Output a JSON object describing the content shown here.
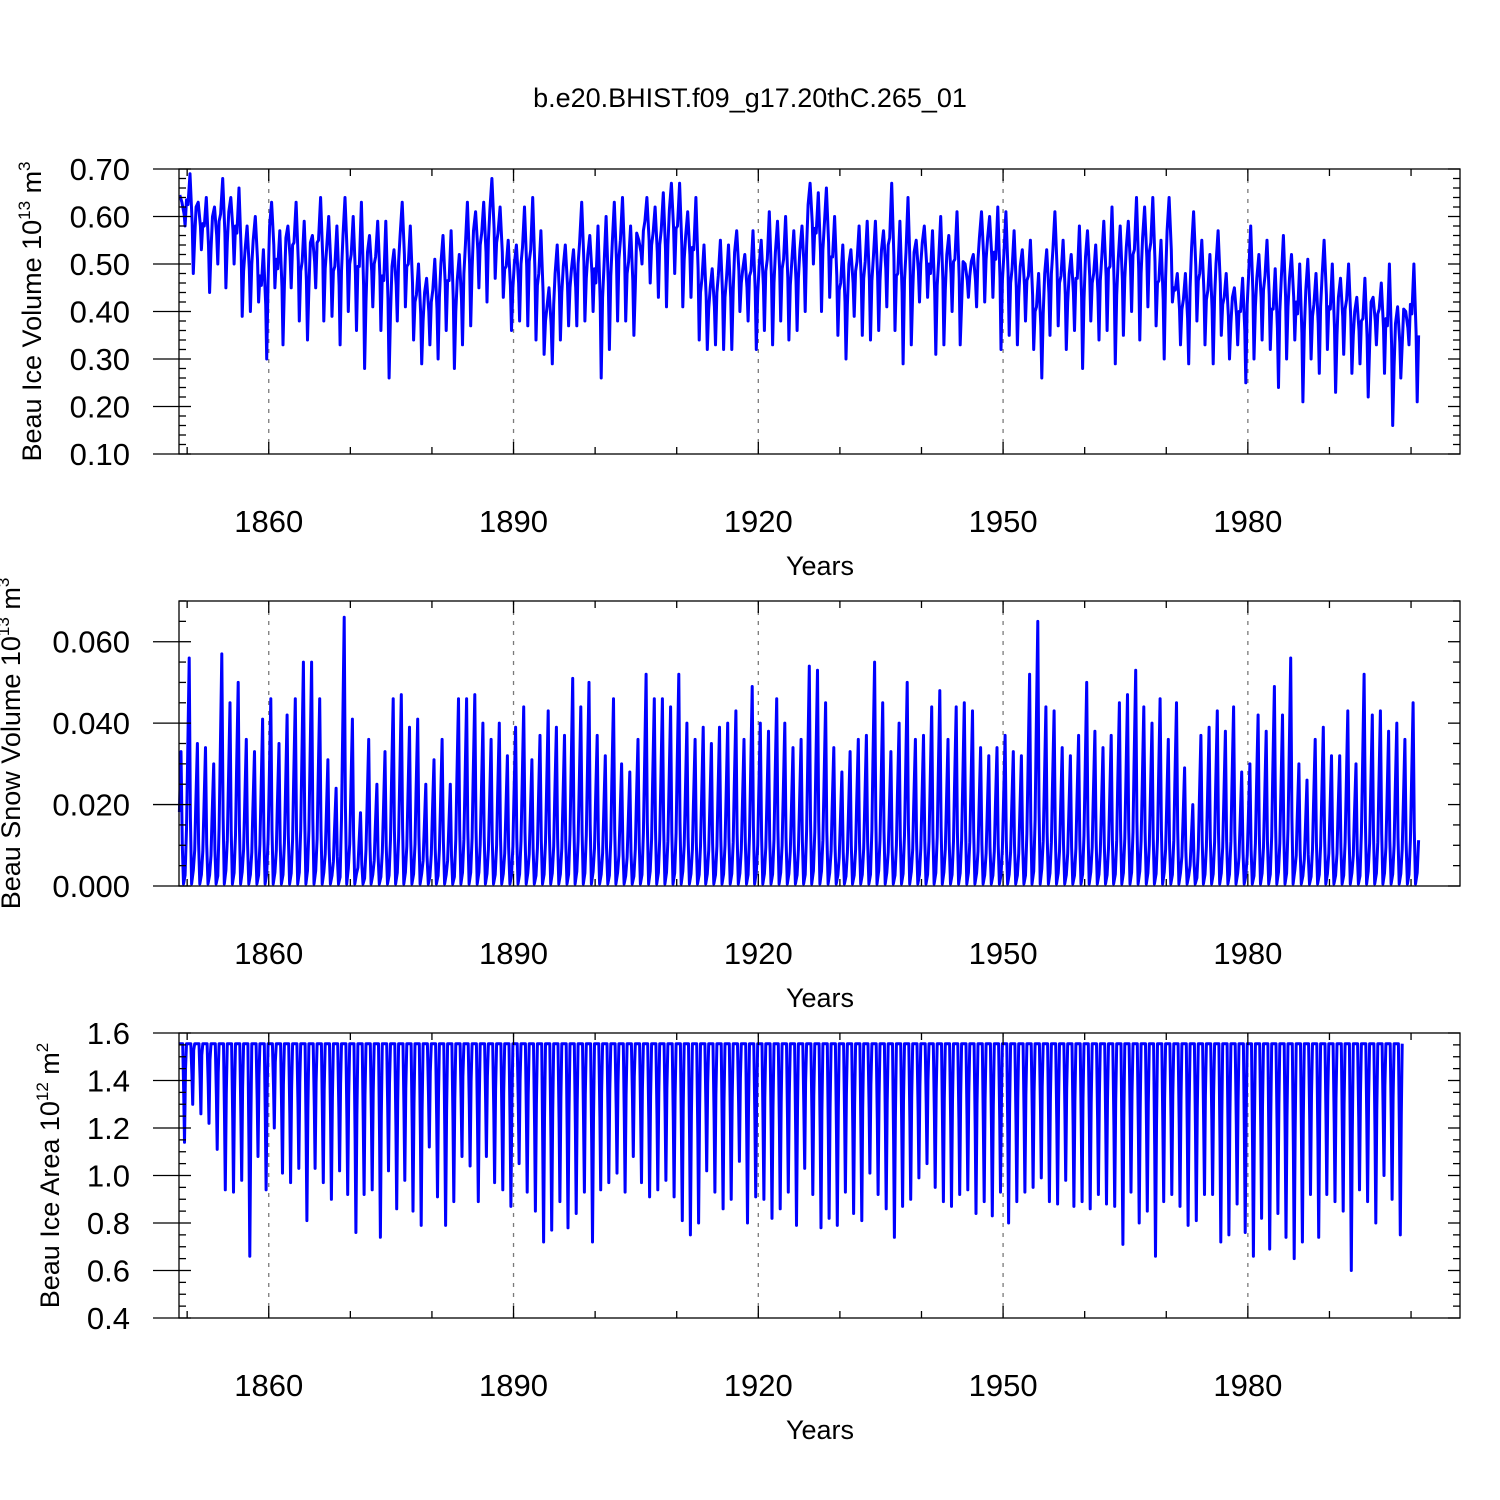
{
  "figure": {
    "title": "b.e20.BHIST.f09_g17.20thC.265_01",
    "series_color": "#0000ff"
  },
  "chart_data": [
    {
      "type": "line",
      "ylabel_main": "Beau Ice Volume 10",
      "ylabel_exp": "13",
      "ylabel_unit": " m",
      "ylabel_unit_exp": "3",
      "xlabel": "Years",
      "x_range": [
        1849,
        2006
      ],
      "ylim": [
        0.1,
        0.7
      ],
      "yticks": [
        0.1,
        0.2,
        0.3,
        0.4,
        0.5,
        0.6,
        0.7
      ],
      "ytick_labels": [
        "0.10",
        "0.20",
        "0.30",
        "0.40",
        "0.50",
        "0.60",
        "0.70"
      ],
      "xticks": [
        1860,
        1890,
        1920,
        1950,
        1980
      ],
      "xtick_labels": [
        "1860",
        "1890",
        "1920",
        "1950",
        "1980"
      ],
      "series": [
        {
          "name": "Beau Ice Volume",
          "annual_max": [
            0.63,
            0.69,
            0.63,
            0.64,
            0.62,
            0.68,
            0.64,
            0.66,
            0.58,
            0.6,
            0.53,
            0.63,
            0.57,
            0.58,
            0.63,
            0.59,
            0.56,
            0.64,
            0.6,
            0.58,
            0.64,
            0.6,
            0.63,
            0.56,
            0.59,
            0.59,
            0.53,
            0.63,
            0.58,
            0.5,
            0.47,
            0.51,
            0.56,
            0.57,
            0.52,
            0.63,
            0.61,
            0.63,
            0.68,
            0.62,
            0.55,
            0.54,
            0.62,
            0.64,
            0.57,
            0.45,
            0.54,
            0.54,
            0.53,
            0.63,
            0.56,
            0.58,
            0.6,
            0.63,
            0.64,
            0.58,
            0.55,
            0.64,
            0.62,
            0.65,
            0.67,
            0.67,
            0.61,
            0.64,
            0.54,
            0.49,
            0.55,
            0.54,
            0.57,
            0.52,
            0.57,
            0.55,
            0.61,
            0.59,
            0.6,
            0.57,
            0.58,
            0.67,
            0.65,
            0.66,
            0.6,
            0.54,
            0.53,
            0.58,
            0.59,
            0.59,
            0.57,
            0.67,
            0.59,
            0.64,
            0.55,
            0.58,
            0.57,
            0.6,
            0.56,
            0.61,
            0.5,
            0.52,
            0.61,
            0.6,
            0.62,
            0.61,
            0.57,
            0.53,
            0.55,
            0.48,
            0.53,
            0.61,
            0.55,
            0.52,
            0.58,
            0.57,
            0.54,
            0.59,
            0.62,
            0.58,
            0.59,
            0.64,
            0.62,
            0.64,
            0.55,
            0.64,
            0.48,
            0.48,
            0.61,
            0.55,
            0.52,
            0.57,
            0.48,
            0.45,
            0.47,
            0.58,
            0.52,
            0.55,
            0.49,
            0.56,
            0.52,
            0.5,
            0.51,
            0.48,
            0.55,
            0.5,
            0.47,
            0.5,
            0.43,
            0.47,
            0.43,
            0.46,
            0.5,
            0.41,
            0.4,
            0.5,
            0.49,
            0.42
          ],
          "annual_min": [
            0.58,
            0.48,
            0.53,
            0.44,
            0.5,
            0.45,
            0.5,
            0.39,
            0.4,
            0.42,
            0.3,
            0.45,
            0.33,
            0.45,
            0.38,
            0.34,
            0.45,
            0.38,
            0.39,
            0.33,
            0.4,
            0.36,
            0.28,
            0.41,
            0.36,
            0.26,
            0.38,
            0.41,
            0.34,
            0.29,
            0.33,
            0.3,
            0.36,
            0.28,
            0.33,
            0.37,
            0.45,
            0.42,
            0.47,
            0.43,
            0.36,
            0.38,
            0.37,
            0.34,
            0.31,
            0.29,
            0.34,
            0.37,
            0.37,
            0.38,
            0.4,
            0.26,
            0.32,
            0.38,
            0.38,
            0.35,
            0.5,
            0.46,
            0.43,
            0.41,
            0.48,
            0.41,
            0.43,
            0.34,
            0.32,
            0.33,
            0.32,
            0.32,
            0.4,
            0.38,
            0.32,
            0.36,
            0.33,
            0.38,
            0.34,
            0.36,
            0.4,
            0.5,
            0.4,
            0.43,
            0.35,
            0.3,
            0.39,
            0.35,
            0.34,
            0.36,
            0.41,
            0.36,
            0.29,
            0.33,
            0.42,
            0.43,
            0.31,
            0.33,
            0.4,
            0.33,
            0.43,
            0.41,
            0.42,
            0.43,
            0.32,
            0.35,
            0.33,
            0.38,
            0.32,
            0.26,
            0.35,
            0.37,
            0.32,
            0.36,
            0.28,
            0.38,
            0.34,
            0.36,
            0.29,
            0.35,
            0.4,
            0.34,
            0.41,
            0.37,
            0.3,
            0.42,
            0.33,
            0.29,
            0.38,
            0.33,
            0.29,
            0.35,
            0.3,
            0.33,
            0.25,
            0.3,
            0.34,
            0.32,
            0.24,
            0.3,
            0.34,
            0.21,
            0.3,
            0.27,
            0.32,
            0.23,
            0.31,
            0.27,
            0.29,
            0.22,
            0.33,
            0.27,
            0.16,
            0.26,
            0.33,
            0.21
          ]
        }
      ]
    },
    {
      "type": "line",
      "ylabel_main": "Beau Snow Volume 10",
      "ylabel_exp": "13",
      "ylabel_unit": " m",
      "ylabel_unit_exp": "3",
      "xlabel": "Years",
      "x_range": [
        1849,
        2006
      ],
      "ylim": [
        0.0,
        0.07
      ],
      "yticks": [
        0.0,
        0.02,
        0.04,
        0.06
      ],
      "ytick_labels": [
        "0.000",
        "0.020",
        "0.040",
        "0.060"
      ],
      "xticks": [
        1860,
        1890,
        1920,
        1950,
        1980
      ],
      "xtick_labels": [
        "1860",
        "1890",
        "1920",
        "1950",
        "1980"
      ],
      "series": [
        {
          "name": "Beau Snow Volume",
          "annual_max": [
            0.033,
            0.056,
            0.035,
            0.034,
            0.03,
            0.057,
            0.045,
            0.05,
            0.036,
            0.033,
            0.041,
            0.046,
            0.035,
            0.042,
            0.046,
            0.055,
            0.055,
            0.046,
            0.031,
            0.024,
            0.066,
            0.041,
            0.018,
            0.036,
            0.025,
            0.033,
            0.046,
            0.047,
            0.039,
            0.041,
            0.025,
            0.031,
            0.036,
            0.025,
            0.046,
            0.046,
            0.047,
            0.04,
            0.036,
            0.04,
            0.032,
            0.039,
            0.044,
            0.031,
            0.037,
            0.043,
            0.039,
            0.037,
            0.051,
            0.044,
            0.05,
            0.037,
            0.032,
            0.046,
            0.03,
            0.028,
            0.036,
            0.052,
            0.046,
            0.046,
            0.044,
            0.052,
            0.04,
            0.036,
            0.039,
            0.035,
            0.039,
            0.04,
            0.043,
            0.036,
            0.049,
            0.04,
            0.038,
            0.046,
            0.04,
            0.034,
            0.036,
            0.054,
            0.053,
            0.045,
            0.034,
            0.028,
            0.033,
            0.036,
            0.037,
            0.055,
            0.045,
            0.033,
            0.04,
            0.05,
            0.036,
            0.037,
            0.044,
            0.048,
            0.036,
            0.044,
            0.045,
            0.043,
            0.034,
            0.032,
            0.034,
            0.037,
            0.033,
            0.032,
            0.052,
            0.065,
            0.044,
            0.043,
            0.034,
            0.032,
            0.037,
            0.05,
            0.038,
            0.034,
            0.037,
            0.045,
            0.047,
            0.053,
            0.044,
            0.04,
            0.046,
            0.036,
            0.045,
            0.029,
            0.02,
            0.037,
            0.039,
            0.043,
            0.038,
            0.044,
            0.028,
            0.03,
            0.042,
            0.038,
            0.049,
            0.042,
            0.056,
            0.03,
            0.026,
            0.036,
            0.039,
            0.032,
            0.032,
            0.043,
            0.03,
            0.052,
            0.042,
            0.043,
            0.038,
            0.04,
            0.036,
            0.045
          ]
        }
      ]
    },
    {
      "type": "line",
      "ylabel_main": "Beau Ice Area 10",
      "ylabel_exp": "12",
      "ylabel_unit": " m",
      "ylabel_unit_exp": "2",
      "xlabel": "Years",
      "x_range": [
        1849,
        2006
      ],
      "ylim": [
        0.4,
        1.6
      ],
      "yticks": [
        0.4,
        0.6,
        0.8,
        1.0,
        1.2,
        1.4,
        1.6
      ],
      "ytick_labels": [
        "0.4",
        "0.6",
        "0.8",
        "1.0",
        "1.2",
        "1.4",
        "1.6"
      ],
      "xticks": [
        1860,
        1890,
        1920,
        1950,
        1980
      ],
      "xtick_labels": [
        "1860",
        "1890",
        "1920",
        "1950",
        "1980"
      ],
      "series": [
        {
          "name": "Beau Ice Area",
          "annual_max": 1.555,
          "annual_min": [
            1.14,
            1.3,
            1.26,
            1.22,
            1.11,
            0.94,
            0.93,
            0.98,
            0.66,
            1.08,
            0.94,
            1.2,
            1.01,
            0.97,
            1.03,
            0.81,
            1.03,
            0.97,
            0.9,
            1.02,
            0.92,
            0.76,
            0.92,
            0.94,
            0.74,
            1.02,
            0.86,
            0.98,
            0.85,
            0.79,
            1.12,
            0.91,
            0.79,
            0.89,
            1.08,
            1.04,
            0.89,
            1.08,
            0.97,
            0.94,
            0.87,
            1.05,
            0.93,
            0.85,
            0.72,
            0.77,
            0.89,
            0.78,
            0.84,
            0.93,
            0.72,
            0.94,
            0.97,
            1.01,
            0.93,
            1.08,
            0.97,
            0.91,
            0.94,
            0.98,
            0.91,
            0.81,
            0.75,
            0.8,
            1.02,
            0.93,
            0.86,
            0.9,
            1.06,
            0.8,
            0.91,
            0.9,
            0.82,
            0.86,
            0.93,
            0.79,
            1.03,
            0.92,
            0.78,
            0.82,
            0.79,
            0.93,
            0.84,
            0.81,
            1.01,
            0.92,
            0.86,
            0.74,
            0.87,
            0.9,
            0.99,
            1.05,
            0.95,
            0.89,
            0.87,
            0.92,
            0.94,
            0.84,
            0.89,
            0.83,
            0.93,
            0.8,
            0.89,
            0.93,
            0.95,
            0.99,
            0.89,
            0.88,
            0.98,
            0.87,
            0.89,
            0.86,
            0.92,
            0.88,
            0.87,
            0.71,
            0.93,
            0.8,
            0.85,
            0.66,
            0.89,
            0.92,
            0.87,
            0.79,
            0.81,
            0.92,
            0.92,
            0.72,
            0.75,
            0.88,
            0.76,
            0.66,
            0.82,
            0.69,
            0.84,
            0.74,
            0.65,
            0.72,
            0.92,
            0.74,
            0.92,
            0.89,
            0.85,
            0.6,
            0.94,
            0.89,
            0.8,
            1.0,
            0.9,
            0.75
          ]
        }
      ]
    }
  ]
}
